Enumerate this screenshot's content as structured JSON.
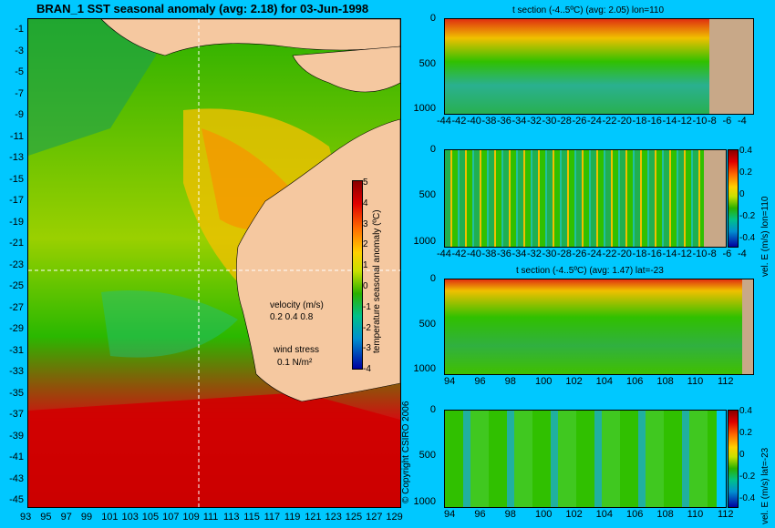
{
  "map": {
    "title": "BRAN_1 SST seasonal anomaly (avg: 2.18) for 03-Jun-1998",
    "lat_ticks": [
      "-1",
      "-3",
      "-5",
      "-7",
      "-9",
      "-11",
      "-13",
      "-15",
      "-17",
      "-19",
      "-21",
      "-23",
      "-25",
      "-27",
      "-29",
      "-31",
      "-33",
      "-35",
      "-37",
      "-39",
      "-41",
      "-43",
      "-45"
    ],
    "lon_ticks": [
      "93",
      "95",
      "97",
      "99",
      "101",
      "103",
      "105",
      "107",
      "109",
      "111",
      "113",
      "115",
      "117",
      "119",
      "121",
      "123",
      "125",
      "127",
      "129"
    ],
    "colorbar_ticks": [
      "5",
      "4",
      "3",
      "2",
      "1",
      "0",
      "-1",
      "-2",
      "-3",
      "-4"
    ],
    "colorbar_label": "temperature seasonal anomaly (ºC)",
    "legend": {
      "velocity_label": "velocity (m/s)",
      "velocity_scale": "0.2 0.4 0.8",
      "wind_label": "wind stress",
      "wind_scale": "0.1 N/m²"
    },
    "copyright": "© Copyright CSIRO 2006",
    "colors": {
      "land": "#f5c8a0",
      "background": "#00c8ff",
      "arrow": "#d000d0"
    }
  },
  "panels": {
    "p1": {
      "title": "t section (-4..5ºC) (avg: 2.05) lon=110",
      "y_ticks": [
        "0",
        "500",
        "1000"
      ],
      "x_ticks": [
        "-44",
        "-42",
        "-40",
        "-38",
        "-36",
        "-34",
        "-32",
        "-30",
        "-28",
        "-26",
        "-24",
        "-22",
        "-20",
        "-18",
        "-16",
        "-14",
        "-12",
        "-10",
        "-8",
        "-6",
        "-4"
      ]
    },
    "p2": {
      "y_ticks": [
        "0",
        "500",
        "1000"
      ],
      "x_ticks": [
        "-44",
        "-42",
        "-40",
        "-38",
        "-36",
        "-34",
        "-32",
        "-30",
        "-28",
        "-26",
        "-24",
        "-22",
        "-20",
        "-18",
        "-16",
        "-14",
        "-12",
        "-10",
        "-8",
        "-6",
        "-4"
      ],
      "cb_ticks": [
        "0.4",
        "0.2",
        "0",
        "-0.2",
        "-0.4"
      ],
      "cb_label": "vel. E (m/s) lon=110"
    },
    "p3": {
      "title": "t section (-4..5ºC) (avg: 1.47) lat=-23",
      "y_ticks": [
        "0",
        "500",
        "1000"
      ],
      "x_ticks": [
        "94",
        "96",
        "98",
        "100",
        "102",
        "104",
        "106",
        "108",
        "110",
        "112"
      ]
    },
    "p4": {
      "y_ticks": [
        "0",
        "500",
        "1000"
      ],
      "x_ticks": [
        "94",
        "96",
        "98",
        "100",
        "102",
        "104",
        "106",
        "108",
        "110",
        "112"
      ],
      "cb_ticks": [
        "0.4",
        "0.2",
        "0",
        "-0.2",
        "-0.4"
      ],
      "cb_label": "vel. E (m/s) lat=-23"
    }
  }
}
